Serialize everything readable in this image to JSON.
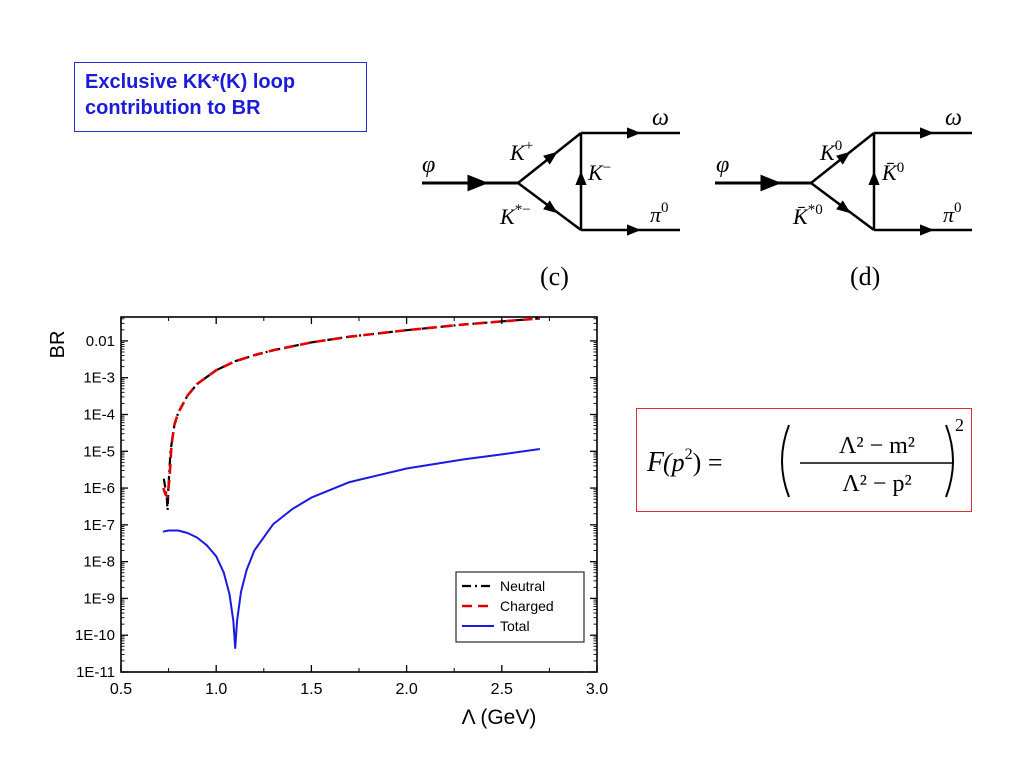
{
  "slide": {
    "title_line1": "Exclusive KK*(K) loop",
    "title_line2": "contribution to BR"
  },
  "diagrams": [
    {
      "caption": "(c)",
      "in": "φ",
      "out_top": "ω",
      "out_bottom": "π",
      "out_bottom_sup": "0",
      "loop_top": "K",
      "loop_top_sup": "+",
      "loop_right": "K",
      "loop_right_sup": "−",
      "loop_bottom": "K",
      "loop_bottom_sup": "*−"
    },
    {
      "caption": "(d)",
      "in": "φ",
      "out_top": "ω",
      "out_bottom": "π",
      "out_bottom_sup": "0",
      "loop_top": "K",
      "loop_top_sup": "0",
      "loop_right": "K̄",
      "loop_right_sup": "0",
      "loop_bottom": "K̄",
      "loop_bottom_sup": "*0"
    }
  ],
  "formula": {
    "lhs_F": "F",
    "lhs_arg": "(p",
    "lhs_arg_sup": "2",
    "lhs_close": ") =",
    "num": "Λ² − m²",
    "den": "Λ² − p²",
    "outer_exp": "2"
  },
  "chart_data": {
    "type": "line",
    "ylabel": "BR",
    "xlabel": "Λ  (GeV)",
    "xlim": [
      0.5,
      3.0
    ],
    "ylim_log10": [
      -11,
      -1.35
    ],
    "yscale": "log",
    "x_ticks": [
      "0.5",
      "1.0",
      "1.5",
      "2.0",
      "2.5",
      "3.0"
    ],
    "y_ticks": [
      "1E-11",
      "1E-10",
      "1E-9",
      "1E-8",
      "1E-7",
      "1E-6",
      "1E-5",
      "1E-4",
      "1E-3",
      "0.01"
    ],
    "legend_position": "bottom-right",
    "series": [
      {
        "name": "Neutral",
        "color": "#000000",
        "style": "dash-dot",
        "x": [
          0.725,
          0.74,
          0.745,
          0.75,
          0.76,
          0.78,
          0.8,
          0.85,
          0.9,
          1.0,
          1.1,
          1.2,
          1.3,
          1.5,
          1.7,
          2.0,
          2.3,
          2.5,
          2.7
        ],
        "y": [
          1.8e-06,
          6e-07,
          2.5e-07,
          1.3e-06,
          1e-05,
          5e-05,
          0.00011,
          0.00033,
          0.00068,
          0.0016,
          0.0028,
          0.0041,
          0.0056,
          0.0091,
          0.013,
          0.0195,
          0.028,
          0.034,
          0.041
        ]
      },
      {
        "name": "Charged",
        "color": "#e00000",
        "style": "dashed",
        "x": [
          0.722,
          0.735,
          0.745,
          0.755,
          0.765,
          0.78,
          0.8,
          0.85,
          0.9,
          1.0,
          1.1,
          1.2,
          1.3,
          1.5,
          1.7,
          2.0,
          2.3,
          2.5,
          2.7
        ],
        "y": [
          1e-06,
          6.5e-07,
          6e-07,
          2e-06,
          1.5e-05,
          5.2e-05,
          0.00011,
          0.00033,
          0.00068,
          0.0016,
          0.0028,
          0.0041,
          0.0056,
          0.0091,
          0.013,
          0.0195,
          0.028,
          0.034,
          0.041
        ]
      },
      {
        "name": "Total",
        "color": "#1a1ae0",
        "style": "solid",
        "x": [
          0.72,
          0.75,
          0.8,
          0.85,
          0.9,
          0.95,
          1.0,
          1.04,
          1.07,
          1.09,
          1.1,
          1.11,
          1.13,
          1.16,
          1.2,
          1.3,
          1.4,
          1.5,
          1.7,
          2.0,
          2.3,
          2.5,
          2.7
        ],
        "y": [
          6.5e-08,
          7e-08,
          7e-08,
          6e-08,
          4.5e-08,
          2.8e-08,
          1.4e-08,
          5e-09,
          1.3e-09,
          2.5e-10,
          4.5e-11,
          2.5e-10,
          1.5e-09,
          6e-09,
          2e-08,
          1.05e-07,
          2.7e-07,
          5.5e-07,
          1.45e-06,
          3.4e-06,
          6e-06,
          8.2e-06,
          1.15e-05
        ]
      }
    ]
  }
}
